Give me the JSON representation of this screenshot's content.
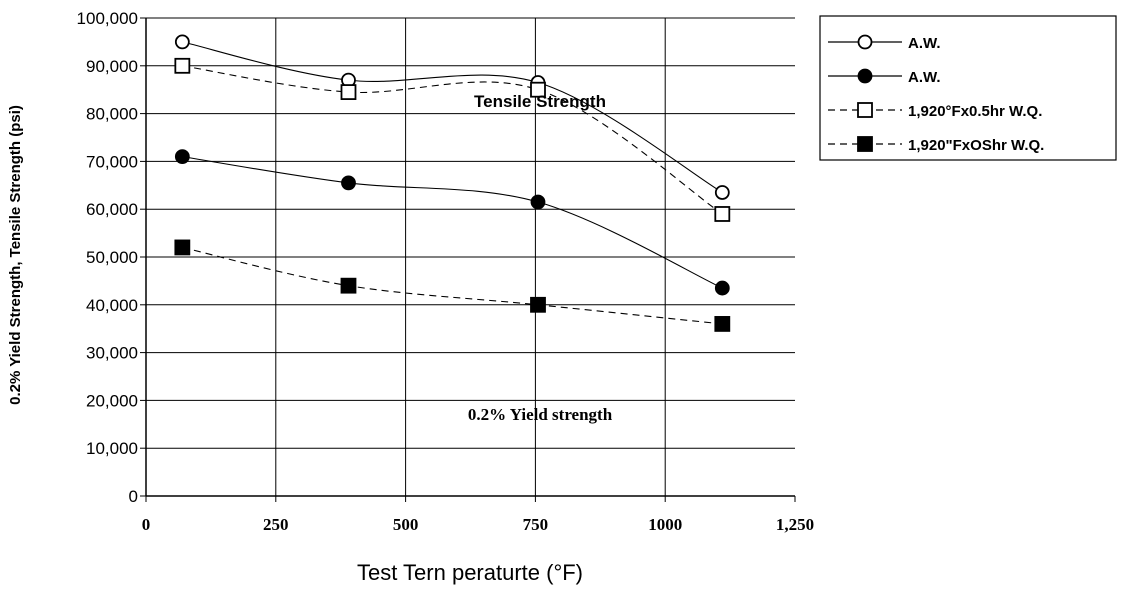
{
  "chart_data": {
    "type": "line",
    "xlabel": "Test Tern peraturte (°F)",
    "ylabel": "0.2% Yield Strength, Tensile Strength (psi)",
    "xlim": [
      0,
      1250
    ],
    "ylim": [
      0,
      100000
    ],
    "x_ticks": [
      "0",
      "250",
      "500",
      "750",
      "1000",
      "1,250"
    ],
    "y_ticks": [
      "0",
      "10,000",
      "20,000",
      "30,000",
      "40,000",
      "50,000",
      "60,000",
      "70,000",
      "80,000",
      "90,000",
      "100,000"
    ],
    "grid": "horizontal",
    "legend_position": "top-right",
    "annotations": [
      "Tensile Strength",
      "0.2% Yield strength"
    ],
    "series": [
      {
        "name": "A.W.",
        "marker": "open-circle",
        "line": "solid",
        "x": [
          70,
          390,
          755,
          1110
        ],
        "values": [
          95000,
          87000,
          86500,
          63500
        ]
      },
      {
        "name": "A.W.",
        "marker": "filled-circle",
        "line": "solid",
        "x": [
          70,
          390,
          755,
          1110
        ],
        "values": [
          71000,
          65500,
          61500,
          43500
        ]
      },
      {
        "name": "1,920°Fx0.5hr W.Q.",
        "marker": "open-square",
        "line": "dashed",
        "x": [
          70,
          390,
          755,
          1110
        ],
        "values": [
          90000,
          84500,
          85000,
          59000
        ]
      },
      {
        "name": "1,920\"FxOShr W.Q.",
        "marker": "filled-square",
        "line": "dashed",
        "x": [
          70,
          390,
          755,
          1110
        ],
        "values": [
          52000,
          44000,
          40000,
          36000
        ]
      }
    ]
  }
}
